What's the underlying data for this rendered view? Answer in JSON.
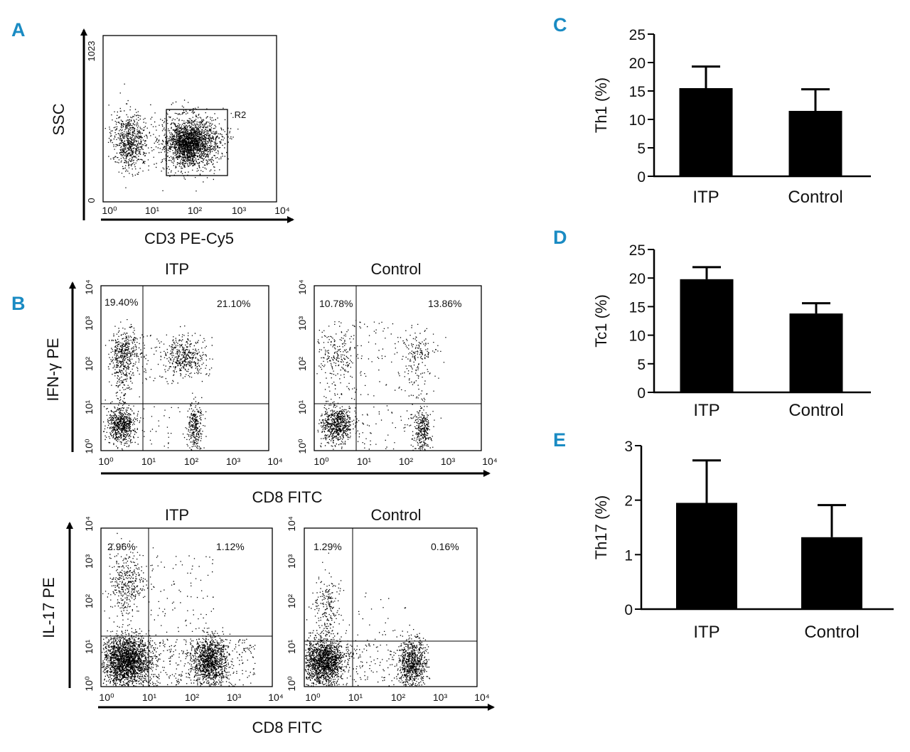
{
  "accent_color": "#1a8bc3",
  "panels": {
    "A": {
      "label": "A",
      "ylabel": "SSC",
      "xlabel": "CD3 PE-Cy5",
      "gate_label": "R2",
      "y_ticks": [
        "0",
        "1023"
      ],
      "x_ticks": [
        "10⁰",
        "10¹",
        "10²",
        "10³",
        "10⁴"
      ]
    },
    "B": {
      "label": "B",
      "xlabel": "CD8 FITC",
      "log_ticks": [
        "10⁰",
        "10¹",
        "10²",
        "10³",
        "10⁴"
      ],
      "rows": [
        {
          "ylabel": "IFN-γ PE",
          "plots": [
            {
              "title": "ITP",
              "upper_left": "19.40%",
              "upper_right": "21.10%"
            },
            {
              "title": "Control",
              "upper_left": "10.78%",
              "upper_right": "13.86%"
            }
          ]
        },
        {
          "ylabel": "IL-17 PE",
          "plots": [
            {
              "title": "ITP",
              "upper_left": "2.96%",
              "upper_right": "1.12%"
            },
            {
              "title": "Control",
              "upper_left": "1.29%",
              "upper_right": "0.16%"
            }
          ]
        }
      ]
    }
  },
  "chart_data": [
    {
      "panel": "C",
      "type": "bar",
      "categories": [
        "ITP",
        "Control"
      ],
      "values": [
        15.5,
        11.5
      ],
      "error": [
        3.8,
        3.8
      ],
      "ylabel": "Th1 (%)",
      "ylim": [
        0,
        25
      ],
      "yticks": [
        0,
        5,
        10,
        15,
        20,
        25
      ]
    },
    {
      "panel": "D",
      "type": "bar",
      "categories": [
        "ITP",
        "Control"
      ],
      "values": [
        19.8,
        13.8
      ],
      "error": [
        2.1,
        1.8
      ],
      "ylabel": "Tc1 (%)",
      "ylim": [
        0,
        25
      ],
      "yticks": [
        0,
        5,
        10,
        15,
        20,
        25
      ]
    },
    {
      "panel": "E",
      "type": "bar",
      "categories": [
        "ITP",
        "Control"
      ],
      "values": [
        1.95,
        1.32
      ],
      "error": [
        0.78,
        0.59
      ],
      "ylabel": "Th17 (%)",
      "ylim": [
        0,
        3
      ],
      "yticks": [
        0,
        1,
        2,
        3
      ]
    }
  ]
}
